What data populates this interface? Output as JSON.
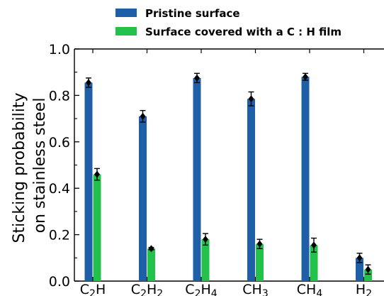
{
  "chart_data": {
    "type": "bar",
    "title": "",
    "xlabel": "",
    "ylabel_lines": [
      "Sticking probability",
      "on stainless steel"
    ],
    "ylim": [
      0,
      1.0
    ],
    "yticks": [
      "0.0",
      "0.2",
      "0.4",
      "0.6",
      "0.8",
      "1.0"
    ],
    "categories": [
      {
        "main": "C",
        "sub": "2",
        "tail": "H"
      },
      {
        "main": "C",
        "sub": "2",
        "tail": "H",
        "sub2": "2"
      },
      {
        "main": "C",
        "sub": "2",
        "tail": "H",
        "sub2": "4"
      },
      {
        "main": "CH",
        "sub": "3"
      },
      {
        "main": "CH",
        "sub": "4"
      },
      {
        "main": "H",
        "sub": "2"
      }
    ],
    "legend_position": "top",
    "series": [
      {
        "name": "Pristine surface",
        "color": "#1f5fa8",
        "values": [
          0.855,
          0.71,
          0.875,
          0.785,
          0.88,
          0.1
        ],
        "errors": [
          0.02,
          0.025,
          0.02,
          0.03,
          0.015,
          0.02
        ]
      },
      {
        "name": "Surface covered with a C : H film",
        "color": "#22c14a",
        "values": [
          0.46,
          0.14,
          0.18,
          0.16,
          0.155,
          0.05
        ],
        "errors": [
          0.025,
          0.005,
          0.025,
          0.02,
          0.03,
          0.02
        ]
      }
    ]
  }
}
